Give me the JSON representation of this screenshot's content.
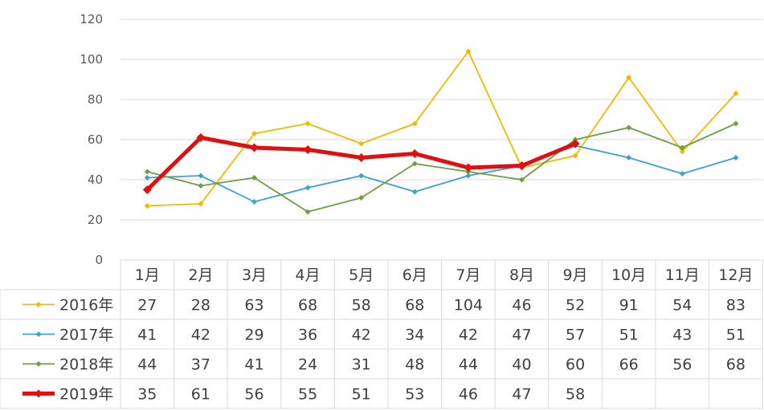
{
  "chart_data": {
    "type": "line",
    "title": "",
    "xlabel": "",
    "ylabel": "",
    "ylim": [
      0,
      120
    ],
    "yticks": [
      "0",
      "20",
      "40",
      "60",
      "80",
      "100",
      "120"
    ],
    "grid": true,
    "legend": "data-table",
    "categories": [
      "1月",
      "2月",
      "3月",
      "4月",
      "5月",
      "6月",
      "7月",
      "8月",
      "9月",
      "10月",
      "11月",
      "12月"
    ],
    "series": [
      {
        "name": "2016年",
        "color": "#F5B800",
        "values": [
          27,
          28,
          63,
          68,
          58,
          68,
          104,
          46,
          52,
          91,
          54,
          83
        ]
      },
      {
        "name": "2017年",
        "color": "#3CA0D0",
        "values": [
          41,
          42,
          29,
          36,
          42,
          34,
          42,
          47,
          57,
          51,
          43,
          51
        ]
      },
      {
        "name": "2018年",
        "color": "#6E9E43",
        "values": [
          44,
          37,
          41,
          24,
          31,
          48,
          44,
          40,
          60,
          66,
          56,
          68
        ]
      },
      {
        "name": "2019年",
        "color": "#E01010",
        "values": [
          35,
          61,
          56,
          55,
          51,
          53,
          46,
          47,
          58,
          null,
          null,
          null
        ]
      }
    ]
  }
}
